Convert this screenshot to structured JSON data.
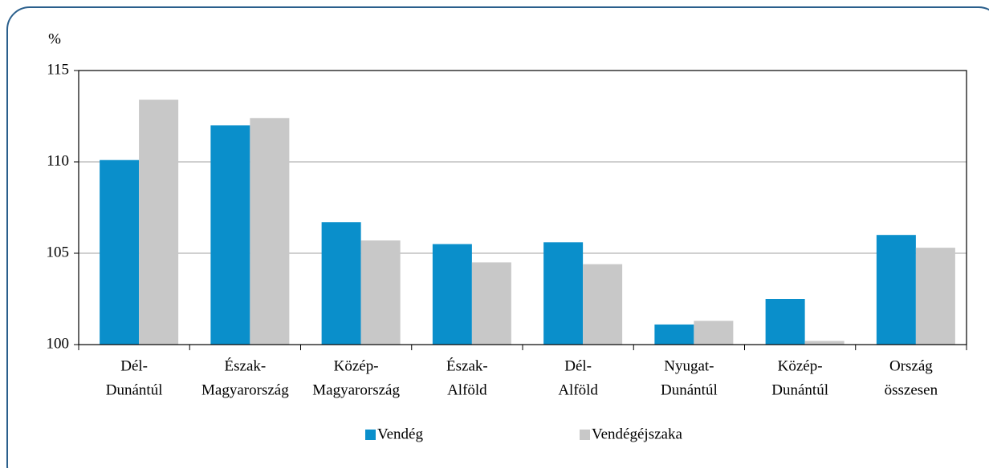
{
  "chart_data": {
    "type": "bar",
    "y_label": "%",
    "categories": [
      [
        "Dél-",
        "Dunántúl"
      ],
      [
        "Észak-",
        "Magyarország"
      ],
      [
        "Közép-",
        "Magyarország"
      ],
      [
        "Észak-",
        "Alföld"
      ],
      [
        "Dél-",
        "Alföld"
      ],
      [
        "Nyugat-",
        "Dunántúl"
      ],
      [
        "Közép-",
        "Dunántúl"
      ],
      [
        "Ország",
        "összesen"
      ]
    ],
    "series": [
      {
        "name": "Vendég",
        "color": "#0a8fcb",
        "values": [
          110.1,
          112.0,
          106.7,
          105.5,
          105.6,
          101.1,
          102.5,
          106.0
        ]
      },
      {
        "name": "Vendégéjszaka",
        "color": "#c8c8c8",
        "values": [
          113.4,
          112.4,
          105.7,
          104.5,
          104.4,
          101.3,
          100.2,
          105.3
        ]
      }
    ],
    "ylim": [
      100,
      115
    ],
    "yticks": [
      100,
      105,
      110,
      115
    ],
    "grid": true,
    "legend": "bottom"
  }
}
